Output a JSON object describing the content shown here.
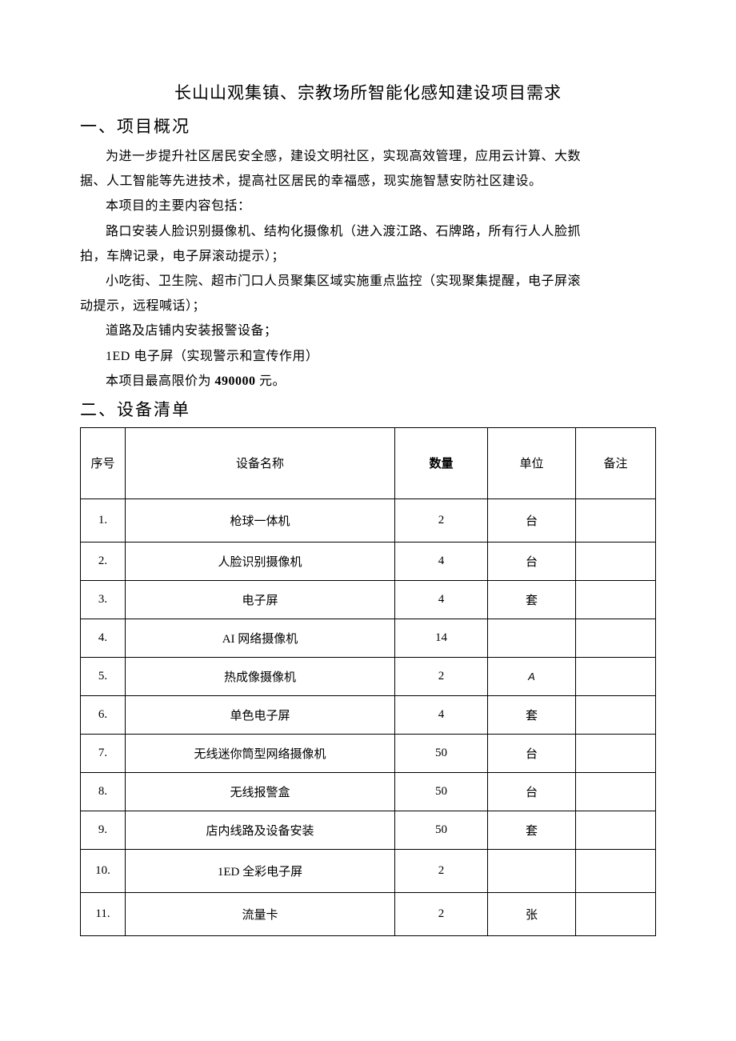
{
  "title": "长山山观集镇、宗教场所智能化感知建设项目需求",
  "section1": {
    "heading": "一、项目概况",
    "p1a": "为进一步提升社区居民安全感，建设文明社区，实现高效管理，应用云计算、大数",
    "p1b": "据、人工智能等先进技术，提高社区居民的幸福感，现实施智慧安防社区建设。",
    "p2": "本项目的主要内容包括：",
    "p3a": "路口安装人脸识别摄像机、结构化摄像机（进入渡江路、石牌路，所有行人人脸抓",
    "p3b": "拍，车牌记录，电子屏滚动提示）；",
    "p4a": "小吃街、卫生院、超市门口人员聚集区域实施重点监控（实现聚集提醒，电子屏滚",
    "p4b": "动提示，远程喊话）；",
    "p5": "道路及店铺内安装报警设备；",
    "p6": "1ED 电子屏（实现警示和宣传作用）",
    "p7a": "本项目最高限价为 ",
    "p7b": "490000",
    "p7c": " 元。"
  },
  "section2": {
    "heading": "二、设备清单",
    "columns": {
      "idx": "序号",
      "name": "设备名称",
      "qty": "数量",
      "unit": "单位",
      "remark": "备注"
    },
    "rows": [
      {
        "idx": "1.",
        "idxAlign": "center",
        "name": "枪球一体机",
        "qty": "2",
        "unit": "台",
        "unitClass": "",
        "remark": "",
        "tall": true
      },
      {
        "idx": "2.",
        "idxAlign": "left",
        "name": "人脸识别摄像机",
        "qty": "4",
        "unit": "台",
        "unitClass": "",
        "remark": "",
        "tall": false
      },
      {
        "idx": "3.",
        "idxAlign": "left",
        "name": "电子屏",
        "qty": "4",
        "unit": "套",
        "unitClass": "",
        "remark": "",
        "tall": false
      },
      {
        "idx": "4.",
        "idxAlign": "left",
        "name": "AI 网络摄像机",
        "qty": "14",
        "unit": "",
        "unitClass": "",
        "remark": "",
        "tall": false
      },
      {
        "idx": "5.",
        "idxAlign": "left",
        "name": "热成像摄像机",
        "qty": "2",
        "unit": "A",
        "unitClass": "unit-italic",
        "remark": "",
        "tall": false
      },
      {
        "idx": "6.",
        "idxAlign": "left",
        "name": "单色电子屏",
        "qty": "4",
        "unit": "套",
        "unitClass": "",
        "remark": "",
        "tall": false
      },
      {
        "idx": "7.",
        "idxAlign": "left",
        "name": "无线迷你筒型网络摄像机",
        "qty": "50",
        "unit": "台",
        "unitClass": "",
        "remark": "",
        "tall": false
      },
      {
        "idx": "8.",
        "idxAlign": "left",
        "name": "无线报警盒",
        "qty": "50",
        "unit": "台",
        "unitClass": "",
        "remark": "",
        "tall": false
      },
      {
        "idx": "9.",
        "idxAlign": "left",
        "name": "店内线路及设备安装",
        "qty": "50",
        "unit": "套",
        "unitClass": "",
        "remark": "",
        "tall": false
      },
      {
        "idx": "10.",
        "idxAlign": "center",
        "name": "1ED 全彩电子屏",
        "qty": "2",
        "unit": "",
        "unitClass": "",
        "remark": "",
        "tall": true
      },
      {
        "idx": "11.",
        "idxAlign": "center",
        "name": "流量卡",
        "qty": "2",
        "unit": "张",
        "unitClass": "",
        "remark": "",
        "tall": true
      }
    ]
  }
}
